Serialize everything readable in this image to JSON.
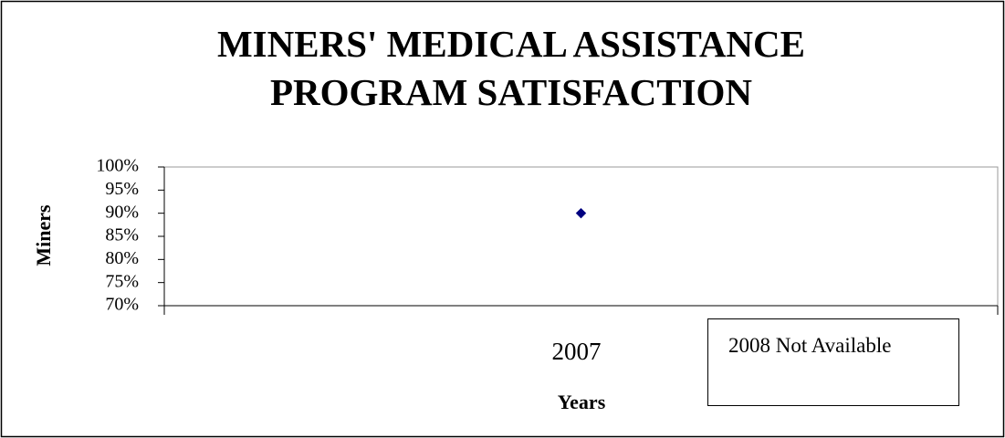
{
  "chart_data": {
    "type": "line",
    "title": "MINERS' MEDICAL ASSISTANCE PROGRAM SATISFACTION",
    "x_label": "Years",
    "y_label": "Miners",
    "categories": [
      "2007"
    ],
    "series": [
      {
        "name": "Miners",
        "color": "#000080",
        "values": [
          90
        ]
      }
    ],
    "ylim": [
      70,
      100
    ],
    "yticks": [
      {
        "value": 70,
        "label": "70%"
      },
      {
        "value": 75,
        "label": "75%"
      },
      {
        "value": 80,
        "label": "80%"
      },
      {
        "value": 85,
        "label": "85%"
      },
      {
        "value": 90,
        "label": "90%"
      },
      {
        "value": 95,
        "label": "95%"
      },
      {
        "value": 100,
        "label": "100%"
      }
    ],
    "grid": false,
    "legend": false,
    "annotation": "2008 Not Available"
  }
}
